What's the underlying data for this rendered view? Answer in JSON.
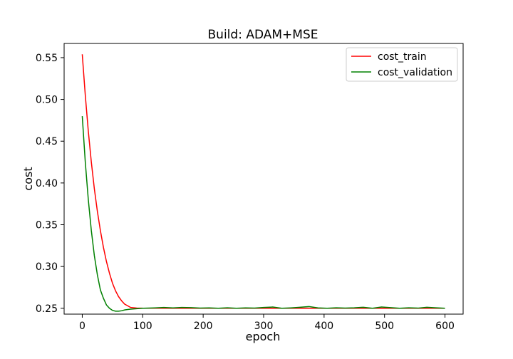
{
  "chart_data": {
    "type": "line",
    "title": "Build: ADAM+MSE",
    "xlabel": "epoch",
    "ylabel": "cost",
    "xlim": [
      -30,
      630
    ],
    "ylim": [
      0.243,
      0.567
    ],
    "xticks": [
      0,
      100,
      200,
      300,
      400,
      500,
      600
    ],
    "yticks": [
      0.25,
      0.3,
      0.35,
      0.4,
      0.45,
      0.5,
      0.55
    ],
    "ytick_labels": [
      "0.25",
      "0.30",
      "0.35",
      "0.40",
      "0.45",
      "0.50",
      "0.55"
    ],
    "grid": false,
    "legend_position": "top-right",
    "series": [
      {
        "name": "cost_train",
        "color": "#ff0000",
        "x": [
          0,
          5,
          10,
          15,
          20,
          25,
          30,
          35,
          40,
          45,
          50,
          55,
          60,
          65,
          70,
          75,
          80,
          90,
          100,
          150,
          200,
          250,
          300,
          350,
          400,
          450,
          500,
          550,
          600
        ],
        "y": [
          0.554,
          0.505,
          0.462,
          0.425,
          0.393,
          0.366,
          0.343,
          0.323,
          0.306,
          0.292,
          0.28,
          0.271,
          0.264,
          0.259,
          0.255,
          0.253,
          0.251,
          0.2503,
          0.2501,
          0.25,
          0.25,
          0.25,
          0.25,
          0.25,
          0.25,
          0.25,
          0.25,
          0.25,
          0.25
        ]
      },
      {
        "name": "cost_validation",
        "color": "#008000",
        "x": [
          0,
          5,
          10,
          15,
          20,
          25,
          30,
          35,
          40,
          45,
          50,
          55,
          60,
          65,
          70,
          75,
          80,
          90,
          100,
          110,
          120,
          135,
          150,
          165,
          180,
          195,
          210,
          225,
          240,
          255,
          270,
          285,
          300,
          315,
          330,
          345,
          360,
          375,
          390,
          405,
          420,
          435,
          450,
          465,
          480,
          495,
          510,
          525,
          540,
          555,
          570,
          585,
          600
        ],
        "y": [
          0.48,
          0.425,
          0.38,
          0.343,
          0.313,
          0.29,
          0.272,
          0.262,
          0.254,
          0.25,
          0.2475,
          0.2465,
          0.2465,
          0.247,
          0.248,
          0.2485,
          0.249,
          0.2495,
          0.25,
          0.2502,
          0.2505,
          0.251,
          0.2505,
          0.251,
          0.2508,
          0.2502,
          0.2505,
          0.25,
          0.2506,
          0.25,
          0.2505,
          0.2502,
          0.251,
          0.2515,
          0.25,
          0.2505,
          0.2512,
          0.252,
          0.2505,
          0.25,
          0.2506,
          0.2503,
          0.2506,
          0.2512,
          0.25,
          0.2515,
          0.2508,
          0.25,
          0.2506,
          0.2502,
          0.2512,
          0.2506,
          0.25
        ]
      }
    ]
  }
}
